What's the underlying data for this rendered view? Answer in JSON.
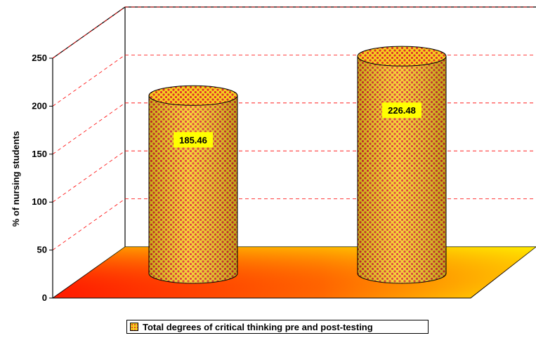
{
  "chart_data": {
    "type": "bar",
    "style": "3d-cylinder",
    "categories": [
      "",
      ""
    ],
    "series": [
      {
        "name": "Total degrees of critical thinking pre and post-testing",
        "values": [
          185.46,
          226.48
        ]
      }
    ],
    "data_labels": [
      "185.46",
      "226.48"
    ],
    "ylabel": "% of nursing students",
    "xlabel": "",
    "ylim": [
      0,
      250
    ],
    "yticks": [
      0,
      50,
      100,
      150,
      200,
      250
    ],
    "grid": true,
    "legend": "bottom",
    "colors": {
      "bar_base": "#f5d020",
      "bar_dots": "#e0302a",
      "floor_start": "#ff1a00",
      "floor_end": "#ffe600",
      "grid": "#ff0000",
      "label_bg": "#ffff00"
    }
  }
}
